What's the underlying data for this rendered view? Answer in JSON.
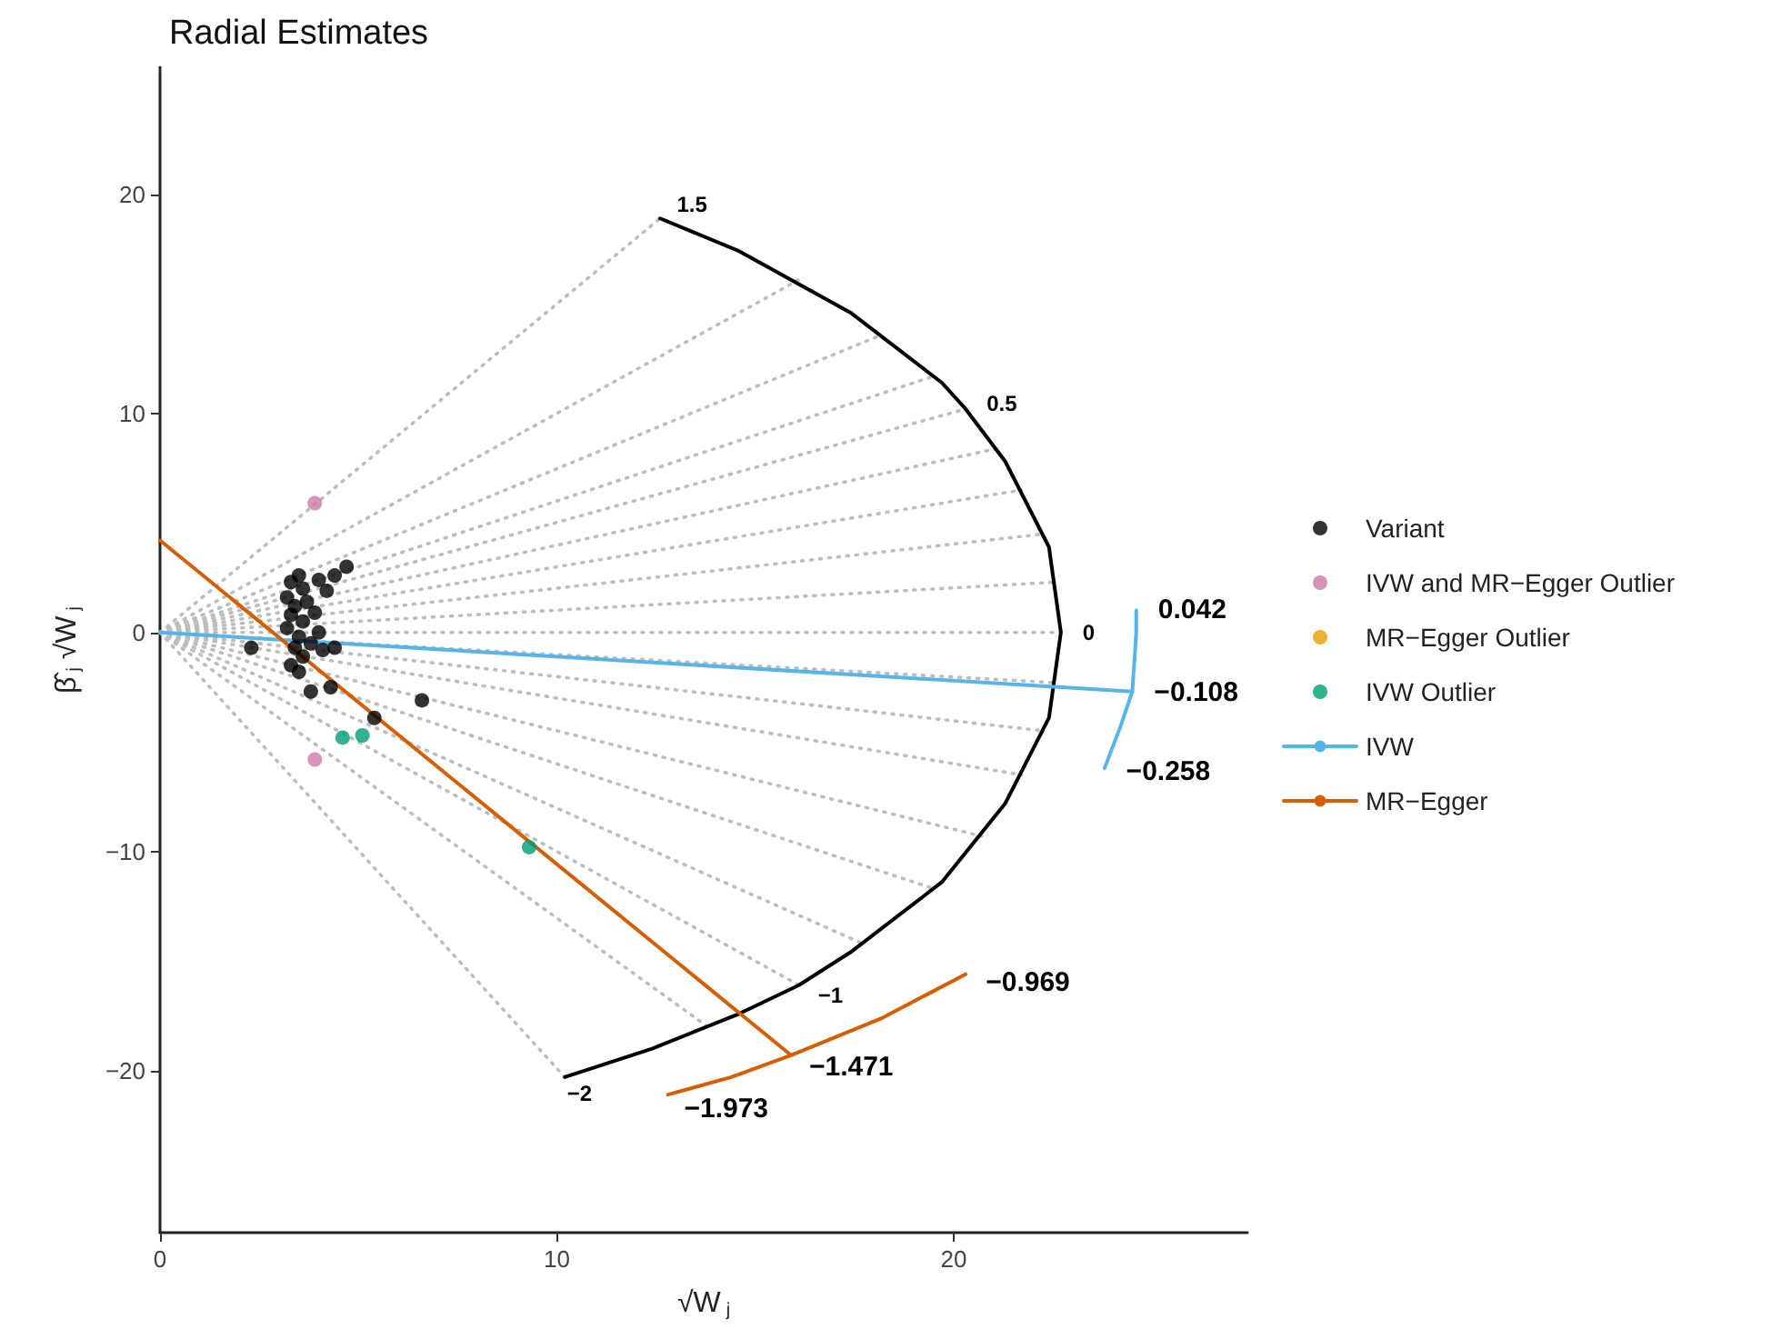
{
  "chart_data": {
    "type": "scatter",
    "title": "Radial Estimates",
    "xlabel": "√W$_{j}$",
    "ylabel": "β̂$_{j}$ √W$_{j}$",
    "xlim": [
      0,
      27.4
    ],
    "xticks": [
      0,
      10,
      20
    ],
    "ylim": [
      -27.4,
      25.8
    ],
    "yticks": [
      -20,
      -10,
      0,
      10,
      20
    ],
    "grid": false,
    "legend": "right",
    "marker": "circle",
    "series": [
      {
        "type": "line",
        "color": "#bdbdbd",
        "line_style": "dotted",
        "marker": "none",
        "x": [
          0,
          12.6
        ],
        "values": [
          0,
          18.9
        ]
      },
      {
        "type": "line",
        "color": "#bdbdbd",
        "line_style": "dotted",
        "marker": "none",
        "x": [
          0,
          16.1
        ],
        "values": [
          0,
          16.1
        ]
      },
      {
        "type": "line",
        "color": "#bdbdbd",
        "line_style": "dotted",
        "marker": "none",
        "x": [
          0,
          18.2
        ],
        "values": [
          0,
          13.6
        ]
      },
      {
        "type": "line",
        "color": "#bdbdbd",
        "line_style": "dotted",
        "marker": "none",
        "x": [
          0,
          19.5
        ],
        "values": [
          0,
          11.7
        ]
      },
      {
        "type": "line",
        "color": "#bdbdbd",
        "line_style": "dotted",
        "marker": "none",
        "x": [
          0,
          20.3
        ],
        "values": [
          0,
          10.2
        ]
      },
      {
        "type": "line",
        "color": "#bdbdbd",
        "line_style": "dotted",
        "marker": "none",
        "x": [
          0,
          21.1
        ],
        "values": [
          0,
          8.4
        ]
      },
      {
        "type": "line",
        "color": "#bdbdbd",
        "line_style": "dotted",
        "marker": "none",
        "x": [
          0,
          21.7
        ],
        "values": [
          0,
          6.5
        ]
      },
      {
        "type": "line",
        "color": "#bdbdbd",
        "line_style": "dotted",
        "marker": "none",
        "x": [
          0,
          22.3
        ],
        "values": [
          0,
          4.5
        ]
      },
      {
        "type": "line",
        "color": "#bdbdbd",
        "line_style": "dotted",
        "marker": "none",
        "x": [
          0,
          22.6
        ],
        "values": [
          0,
          2.3
        ]
      },
      {
        "type": "line",
        "color": "#bdbdbd",
        "line_style": "dotted",
        "marker": "none",
        "x": [
          0,
          22.7
        ],
        "values": [
          0,
          0
        ]
      },
      {
        "type": "line",
        "color": "#bdbdbd",
        "line_style": "dotted",
        "marker": "none",
        "x": [
          0,
          22.6
        ],
        "values": [
          0,
          -2.3
        ]
      },
      {
        "type": "line",
        "color": "#bdbdbd",
        "line_style": "dotted",
        "marker": "none",
        "x": [
          0,
          22.3
        ],
        "values": [
          0,
          -4.5
        ]
      },
      {
        "type": "line",
        "color": "#bdbdbd",
        "line_style": "dotted",
        "marker": "none",
        "x": [
          0,
          21.7
        ],
        "values": [
          0,
          -6.5
        ]
      },
      {
        "type": "line",
        "color": "#bdbdbd",
        "line_style": "dotted",
        "marker": "none",
        "x": [
          0,
          20.7
        ],
        "values": [
          0,
          -9.3
        ]
      },
      {
        "type": "line",
        "color": "#bdbdbd",
        "line_style": "dotted",
        "marker": "none",
        "x": [
          0,
          19.5
        ],
        "values": [
          0,
          -11.7
        ]
      },
      {
        "type": "line",
        "color": "#bdbdbd",
        "line_style": "dotted",
        "marker": "none",
        "x": [
          0,
          17.7
        ],
        "values": [
          0,
          -14.2
        ]
      },
      {
        "type": "line",
        "color": "#bdbdbd",
        "line_style": "dotted",
        "marker": "none",
        "x": [
          0,
          16.1
        ],
        "values": [
          0,
          -16.1
        ]
      },
      {
        "type": "line",
        "color": "#bdbdbd",
        "line_style": "dotted",
        "marker": "none",
        "x": [
          0,
          13.8
        ],
        "values": [
          0,
          -18
        ]
      },
      {
        "type": "line",
        "color": "#bdbdbd",
        "line_style": "dotted",
        "marker": "none",
        "x": [
          0,
          10.2
        ],
        "values": [
          0,
          -20.3
        ]
      },
      {
        "type": "line",
        "color": "#000000",
        "line_style": "solid",
        "marker": "none",
        "x": [
          12.6,
          14.6,
          17.4,
          19.7,
          20.3,
          21.3,
          22.4,
          22.7,
          22.4,
          21.3,
          19.7,
          17.4,
          16.1,
          14.6,
          12.4,
          10.2
        ],
        "values": [
          18.9,
          17.4,
          14.6,
          11.4,
          10.2,
          7.8,
          3.9,
          0,
          -3.9,
          -7.8,
          -11.4,
          -14.6,
          -16.1,
          -17.4,
          -19,
          -20.3
        ]
      },
      {
        "type": "line",
        "color": "#56b4e9",
        "line_style": "solid",
        "marker": "none",
        "x": [
          24.6,
          24.6,
          24.5,
          24.2,
          23.8
        ],
        "values": [
          1,
          0,
          -2.7,
          -4.3,
          -6.2
        ]
      },
      {
        "type": "line",
        "color": "#d55e00",
        "line_style": "solid",
        "marker": "none",
        "x": [
          12.8,
          14.4,
          15.9,
          18.2,
          20.3
        ],
        "values": [
          -21.1,
          -20.3,
          -19.3,
          -17.6,
          -15.6
        ]
      },
      {
        "name": "Variant",
        "color": "#000000",
        "x": [
          2.3,
          3.8,
          4.3,
          5.4,
          6.6,
          4.7,
          4.4,
          3.5,
          3.3,
          3.6,
          3.2,
          3.4,
          3.7,
          3.3,
          3.6,
          3.2,
          3.5,
          3.8,
          3.4,
          3.6,
          3.3,
          3.5,
          4,
          4.2,
          4.4,
          4.1,
          3.9,
          4
        ],
        "values": [
          -0.7,
          -2.7,
          -2.5,
          -3.9,
          -3.1,
          3,
          -0.7,
          2.6,
          2.3,
          2,
          1.6,
          1.2,
          1.4,
          0.8,
          0.5,
          0.2,
          -0.2,
          -0.5,
          -0.7,
          -1.1,
          -1.5,
          -1.8,
          2.4,
          1.9,
          2.6,
          -0.8,
          0.9,
          0
        ]
      },
      {
        "name": "IVW and MR−Egger Outlier",
        "color": "#cc79a7",
        "x": [
          3.9,
          3.9
        ],
        "values": [
          5.9,
          -5.8
        ]
      },
      {
        "name": "MR−Egger Outlier",
        "color": "#e69f00"
      },
      {
        "name": "IVW Outlier",
        "color": "#009e73",
        "x": [
          4.6,
          5.1,
          9.3
        ],
        "values": [
          -4.8,
          -4.7,
          -9.8
        ]
      },
      {
        "name": "IVW",
        "type": "line",
        "color": "#56b4e9",
        "line_style": "solid",
        "marker": "none",
        "x": [
          0,
          24.5
        ],
        "values": [
          0,
          -2.7
        ]
      },
      {
        "name": "MR−Egger",
        "type": "line",
        "color": "#d55e00",
        "line_style": "solid",
        "marker": "none",
        "x": [
          0,
          15.9
        ],
        "values": [
          4.2,
          -19.3
        ]
      }
    ],
    "annotations": [
      {
        "text": "1.5",
        "x": 12.6,
        "y": 18.9
      },
      {
        "text": "0.5",
        "x": 20.3,
        "y": 10.2
      },
      {
        "text": "0",
        "x": 22.7,
        "y": 0
      },
      {
        "text": "−1",
        "x": 16.1,
        "y": -16.1
      },
      {
        "text": "−2",
        "x": 10.2,
        "y": -20.3
      },
      {
        "text": "0.042",
        "x": 24.6,
        "y": 1
      },
      {
        "text": "−0.108",
        "x": 24.5,
        "y": -2.7
      },
      {
        "text": "−0.258",
        "x": 23.8,
        "y": -6.2
      },
      {
        "text": "−0.969",
        "x": 20.3,
        "y": -15.6
      },
      {
        "text": "−1.471",
        "x": 15.9,
        "y": -19.3
      },
      {
        "text": "−1.973",
        "x": 12.8,
        "y": -21.1
      }
    ]
  }
}
